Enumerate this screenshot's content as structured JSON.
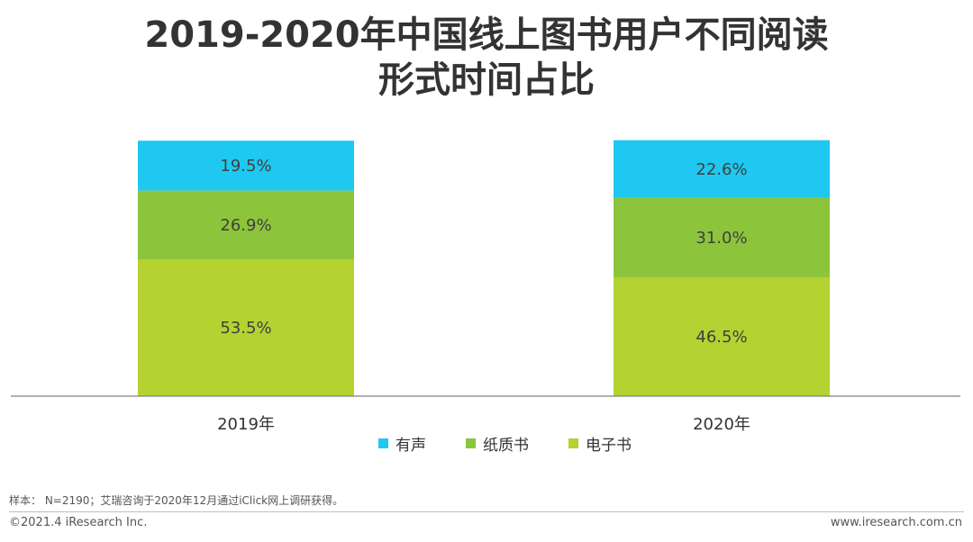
{
  "title_lines": [
    "2019-2020年中国线上图书用户不同阅读",
    "形式时间占比"
  ],
  "note": "样本： N=2190；艾瑞咨询于2020年12月通过iClick网上调研获得。",
  "footer": {
    "copyright": "©2021.4 iResearch Inc.",
    "website": "www.iresearch.com.cn"
  },
  "colors": {
    "有声": "#1ec8f0",
    "纸质书": "#8cc43c",
    "电子书": "#b4d232",
    "axis": "#7f7f7f",
    "label_text": "#404040"
  },
  "chart_data": {
    "type": "bar",
    "stacked": true,
    "percent": true,
    "categories": [
      "2019年",
      "2020年"
    ],
    "series": [
      {
        "name": "电子书",
        "values": [
          53.5,
          46.5
        ]
      },
      {
        "name": "纸质书",
        "values": [
          26.9,
          31.0
        ]
      },
      {
        "name": "有声",
        "values": [
          19.5,
          22.6
        ]
      }
    ],
    "value_labels": [
      [
        "53.5%",
        "46.5%"
      ],
      [
        "26.9%",
        "31.0%"
      ],
      [
        "19.5%",
        "22.6%"
      ]
    ],
    "legend": [
      "有声",
      "纸质书",
      "电子书"
    ],
    "legend_position": "bottom",
    "ylim": [
      0,
      100
    ],
    "grid": false
  }
}
